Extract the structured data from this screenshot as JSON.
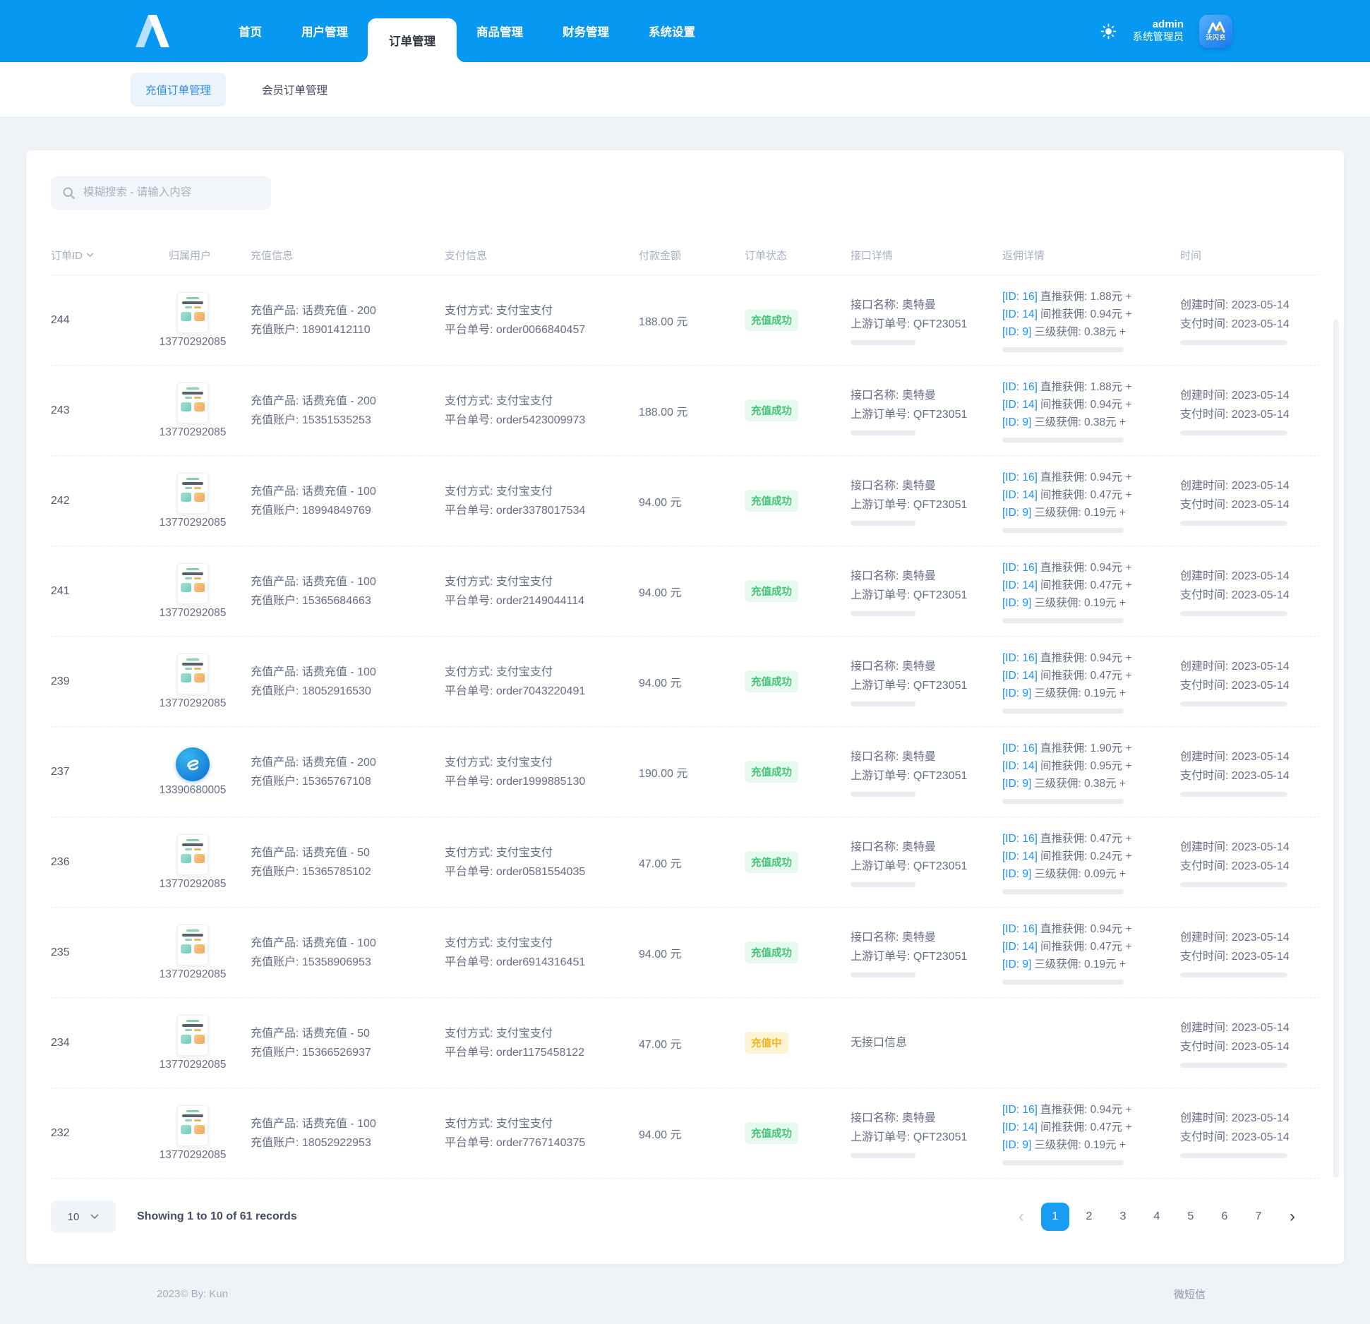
{
  "colors": {
    "accent": "#0798f2",
    "link": "#1890ff",
    "success_text": "#47c479",
    "success_bg": "#e6f9ee",
    "pending_text": "#f0b41f",
    "pending_bg": "#fdf3d5",
    "active_page_bg": "#189cf4"
  },
  "header": {
    "nav": [
      {
        "label": "首页",
        "active": false
      },
      {
        "label": "用户管理",
        "active": false
      },
      {
        "label": "订单管理",
        "active": true
      },
      {
        "label": "商品管理",
        "active": false
      },
      {
        "label": "财务管理",
        "active": false
      },
      {
        "label": "系统设置",
        "active": false
      }
    ],
    "user": {
      "name": "admin",
      "role": "系统管理员"
    },
    "avatar_label": "沃闪充",
    "icons": {
      "theme": "sun-icon",
      "logo": "double-slash-logo"
    }
  },
  "subnav": {
    "tabs": [
      {
        "label": "充值订单管理",
        "active": true
      },
      {
        "label": "会员订单管理",
        "active": false
      }
    ]
  },
  "search": {
    "placeholder": "模糊搜索 - 请输入内容",
    "icon": "search-icon"
  },
  "table": {
    "columns": [
      {
        "label": "订单ID",
        "sortable": true
      },
      {
        "label": "归属用户",
        "sortable": false
      },
      {
        "label": "充值信息",
        "sortable": false
      },
      {
        "label": "支付信息",
        "sortable": false
      },
      {
        "label": "付款金额",
        "sortable": false
      },
      {
        "label": "订单状态",
        "sortable": false
      },
      {
        "label": "接口详情",
        "sortable": false
      },
      {
        "label": "返佣详情",
        "sortable": false
      },
      {
        "label": "时间",
        "sortable": false
      }
    ],
    "rows": [
      {
        "id": "244",
        "phone": "13770292085",
        "avatar": "app-screenshot",
        "recharge": {
          "product_label": "充值产品:",
          "product": "话费充值 - 200",
          "account_label": "充值账户:",
          "account": "18901412110"
        },
        "payment": {
          "method_label": "支付方式:",
          "method": "支付宝支付",
          "order_label": "平台单号:",
          "order": "order0066840457"
        },
        "amount": "188.00 元",
        "status": {
          "label": "充值成功",
          "type": "success"
        },
        "api": {
          "name_label": "接口名称:",
          "name": "奥特曼",
          "order_label": "上游订单号:",
          "order": "QFT23051"
        },
        "commission": [
          {
            "tag": "[ID: 16]",
            "text": "直推获佣: 1.88元 +"
          },
          {
            "tag": "[ID: 14]",
            "text": "间推获佣: 0.94元 +"
          },
          {
            "tag": "[ID: 9]",
            "text": "三级获佣: 0.38元 +"
          }
        ],
        "time": {
          "created_label": "创建时间:",
          "created": "2023-05-14",
          "paid_label": "支付时间:",
          "paid": "2023-05-14"
        }
      },
      {
        "id": "243",
        "phone": "13770292085",
        "avatar": "app-screenshot",
        "recharge": {
          "product_label": "充值产品:",
          "product": "话费充值 - 200",
          "account_label": "充值账户:",
          "account": "15351535253"
        },
        "payment": {
          "method_label": "支付方式:",
          "method": "支付宝支付",
          "order_label": "平台单号:",
          "order": "order5423009973"
        },
        "amount": "188.00 元",
        "status": {
          "label": "充值成功",
          "type": "success"
        },
        "api": {
          "name_label": "接口名称:",
          "name": "奥特曼",
          "order_label": "上游订单号:",
          "order": "QFT23051"
        },
        "commission": [
          {
            "tag": "[ID: 16]",
            "text": "直推获佣: 1.88元 +"
          },
          {
            "tag": "[ID: 14]",
            "text": "间推获佣: 0.94元 +"
          },
          {
            "tag": "[ID: 9]",
            "text": "三级获佣: 0.38元 +"
          }
        ],
        "time": {
          "created_label": "创建时间:",
          "created": "2023-05-14",
          "paid_label": "支付时间:",
          "paid": "2023-05-14"
        }
      },
      {
        "id": "242",
        "phone": "13770292085",
        "avatar": "app-screenshot",
        "recharge": {
          "product_label": "充值产品:",
          "product": "话费充值 - 100",
          "account_label": "充值账户:",
          "account": "18994849769"
        },
        "payment": {
          "method_label": "支付方式:",
          "method": "支付宝支付",
          "order_label": "平台单号:",
          "order": "order3378017534"
        },
        "amount": "94.00 元",
        "status": {
          "label": "充值成功",
          "type": "success"
        },
        "api": {
          "name_label": "接口名称:",
          "name": "奥特曼",
          "order_label": "上游订单号:",
          "order": "QFT23051"
        },
        "commission": [
          {
            "tag": "[ID: 16]",
            "text": "直推获佣: 0.94元 +"
          },
          {
            "tag": "[ID: 14]",
            "text": "间推获佣: 0.47元 +"
          },
          {
            "tag": "[ID: 9]",
            "text": "三级获佣: 0.19元 +"
          }
        ],
        "time": {
          "created_label": "创建时间:",
          "created": "2023-05-14",
          "paid_label": "支付时间:",
          "paid": "2023-05-14"
        }
      },
      {
        "id": "241",
        "phone": "13770292085",
        "avatar": "app-screenshot",
        "recharge": {
          "product_label": "充值产品:",
          "product": "话费充值 - 100",
          "account_label": "充值账户:",
          "account": "15365684663"
        },
        "payment": {
          "method_label": "支付方式:",
          "method": "支付宝支付",
          "order_label": "平台单号:",
          "order": "order2149044114"
        },
        "amount": "94.00 元",
        "status": {
          "label": "充值成功",
          "type": "success"
        },
        "api": {
          "name_label": "接口名称:",
          "name": "奥特曼",
          "order_label": "上游订单号:",
          "order": "QFT23051"
        },
        "commission": [
          {
            "tag": "[ID: 16]",
            "text": "直推获佣: 0.94元 +"
          },
          {
            "tag": "[ID: 14]",
            "text": "间推获佣: 0.47元 +"
          },
          {
            "tag": "[ID: 9]",
            "text": "三级获佣: 0.19元 +"
          }
        ],
        "time": {
          "created_label": "创建时间:",
          "created": "2023-05-14",
          "paid_label": "支付时间:",
          "paid": "2023-05-14"
        }
      },
      {
        "id": "239",
        "phone": "13770292085",
        "avatar": "app-screenshot",
        "recharge": {
          "product_label": "充值产品:",
          "product": "话费充值 - 100",
          "account_label": "充值账户:",
          "account": "18052916530"
        },
        "payment": {
          "method_label": "支付方式:",
          "method": "支付宝支付",
          "order_label": "平台单号:",
          "order": "order7043220491"
        },
        "amount": "94.00 元",
        "status": {
          "label": "充值成功",
          "type": "success"
        },
        "api": {
          "name_label": "接口名称:",
          "name": "奥特曼",
          "order_label": "上游订单号:",
          "order": "QFT23051"
        },
        "commission": [
          {
            "tag": "[ID: 16]",
            "text": "直推获佣: 0.94元 +"
          },
          {
            "tag": "[ID: 14]",
            "text": "间推获佣: 0.47元 +"
          },
          {
            "tag": "[ID: 9]",
            "text": "三级获佣: 0.19元 +"
          }
        ],
        "time": {
          "created_label": "创建时间:",
          "created": "2023-05-14",
          "paid_label": "支付时间:",
          "paid": "2023-05-14"
        }
      },
      {
        "id": "237",
        "phone": "13390680005",
        "avatar": "telecom",
        "recharge": {
          "product_label": "充值产品:",
          "product": "话费充值 - 200",
          "account_label": "充值账户:",
          "account": "15365767108"
        },
        "payment": {
          "method_label": "支付方式:",
          "method": "支付宝支付",
          "order_label": "平台单号:",
          "order": "order1999885130"
        },
        "amount": "190.00 元",
        "status": {
          "label": "充值成功",
          "type": "success"
        },
        "api": {
          "name_label": "接口名称:",
          "name": "奥特曼",
          "order_label": "上游订单号:",
          "order": "QFT23051"
        },
        "commission": [
          {
            "tag": "[ID: 16]",
            "text": "直推获佣: 1.90元 +"
          },
          {
            "tag": "[ID: 14]",
            "text": "间推获佣: 0.95元 +"
          },
          {
            "tag": "[ID: 9]",
            "text": "三级获佣: 0.38元 +"
          }
        ],
        "time": {
          "created_label": "创建时间:",
          "created": "2023-05-14",
          "paid_label": "支付时间:",
          "paid": "2023-05-14"
        }
      },
      {
        "id": "236",
        "phone": "13770292085",
        "avatar": "app-screenshot",
        "recharge": {
          "product_label": "充值产品:",
          "product": "话费充值 - 50",
          "account_label": "充值账户:",
          "account": "15365785102"
        },
        "payment": {
          "method_label": "支付方式:",
          "method": "支付宝支付",
          "order_label": "平台单号:",
          "order": "order0581554035"
        },
        "amount": "47.00 元",
        "status": {
          "label": "充值成功",
          "type": "success"
        },
        "api": {
          "name_label": "接口名称:",
          "name": "奥特曼",
          "order_label": "上游订单号:",
          "order": "QFT23051"
        },
        "commission": [
          {
            "tag": "[ID: 16]",
            "text": "直推获佣: 0.47元 +"
          },
          {
            "tag": "[ID: 14]",
            "text": "间推获佣: 0.24元 +"
          },
          {
            "tag": "[ID: 9]",
            "text": "三级获佣: 0.09元 +"
          }
        ],
        "time": {
          "created_label": "创建时间:",
          "created": "2023-05-14",
          "paid_label": "支付时间:",
          "paid": "2023-05-14"
        }
      },
      {
        "id": "235",
        "phone": "13770292085",
        "avatar": "app-screenshot",
        "recharge": {
          "product_label": "充值产品:",
          "product": "话费充值 - 100",
          "account_label": "充值账户:",
          "account": "15358906953"
        },
        "payment": {
          "method_label": "支付方式:",
          "method": "支付宝支付",
          "order_label": "平台单号:",
          "order": "order6914316451"
        },
        "amount": "94.00 元",
        "status": {
          "label": "充值成功",
          "type": "success"
        },
        "api": {
          "name_label": "接口名称:",
          "name": "奥特曼",
          "order_label": "上游订单号:",
          "order": "QFT23051"
        },
        "commission": [
          {
            "tag": "[ID: 16]",
            "text": "直推获佣: 0.94元 +"
          },
          {
            "tag": "[ID: 14]",
            "text": "间推获佣: 0.47元 +"
          },
          {
            "tag": "[ID: 9]",
            "text": "三级获佣: 0.19元 +"
          }
        ],
        "time": {
          "created_label": "创建时间:",
          "created": "2023-05-14",
          "paid_label": "支付时间:",
          "paid": "2023-05-14"
        }
      },
      {
        "id": "234",
        "phone": "13770292085",
        "avatar": "app-screenshot",
        "recharge": {
          "product_label": "充值产品:",
          "product": "话费充值 - 50",
          "account_label": "充值账户:",
          "account": "15366526937"
        },
        "payment": {
          "method_label": "支付方式:",
          "method": "支付宝支付",
          "order_label": "平台单号:",
          "order": "order1175458122"
        },
        "amount": "47.00 元",
        "status": {
          "label": "充值中",
          "type": "pending"
        },
        "api": {
          "empty": "无接口信息"
        },
        "commission": [],
        "time": {
          "created_label": "创建时间:",
          "created": "2023-05-14",
          "paid_label": "支付时间:",
          "paid": "2023-05-14"
        }
      },
      {
        "id": "232",
        "phone": "13770292085",
        "avatar": "app-screenshot",
        "recharge": {
          "product_label": "充值产品:",
          "product": "话费充值 - 100",
          "account_label": "充值账户:",
          "account": "18052922953"
        },
        "payment": {
          "method_label": "支付方式:",
          "method": "支付宝支付",
          "order_label": "平台单号:",
          "order": "order7767140375"
        },
        "amount": "94.00 元",
        "status": {
          "label": "充值成功",
          "type": "success"
        },
        "api": {
          "name_label": "接口名称:",
          "name": "奥特曼",
          "order_label": "上游订单号:",
          "order": "QFT23051"
        },
        "commission": [
          {
            "tag": "[ID: 16]",
            "text": "直推获佣: 0.94元 +"
          },
          {
            "tag": "[ID: 14]",
            "text": "间推获佣: 0.47元 +"
          },
          {
            "tag": "[ID: 9]",
            "text": "三级获佣: 0.19元 +"
          }
        ],
        "time": {
          "created_label": "创建时间:",
          "created": "2023-05-14",
          "paid_label": "支付时间:",
          "paid": "2023-05-14"
        }
      }
    ]
  },
  "pagination": {
    "page_size": "10",
    "summary": "Showing 1 to 10 of 61 records",
    "pages": [
      "1",
      "2",
      "3",
      "4",
      "5",
      "6",
      "7"
    ],
    "active_page": "1",
    "prev_icon": "‹",
    "next_icon": "›"
  },
  "footer": {
    "left": "2023©  By:  Kun",
    "right": "微短信"
  }
}
